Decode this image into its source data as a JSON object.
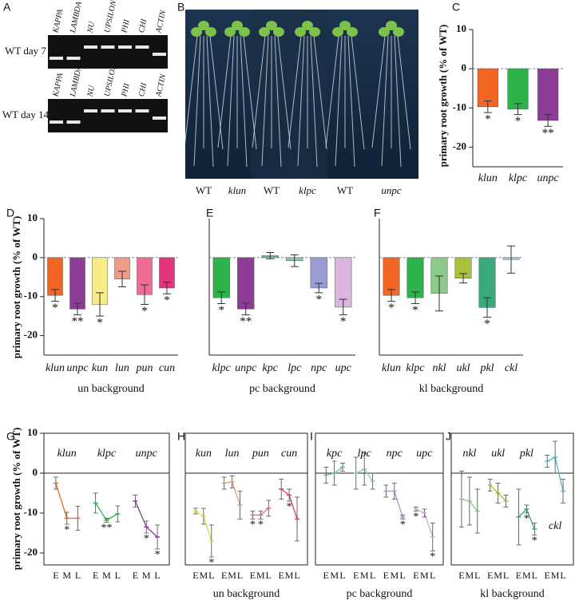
{
  "panel_A": {
    "label": "A",
    "lanes": [
      "KAPPA",
      "LAMBDA",
      "NU",
      "UPSILON",
      "PHI",
      "CHI",
      "ACTIN"
    ],
    "rows": [
      "WT day 7",
      "WT day 14"
    ]
  },
  "panel_B": {
    "label": "B",
    "captions": [
      "WT",
      "klun",
      "WT",
      "klpc",
      "WT",
      "unpc"
    ]
  },
  "chart_data": [
    {
      "type": "bar",
      "panel": "C",
      "ylabel": "primary root growth (% of WT)",
      "categories": [
        "klun",
        "klpc",
        "unpc"
      ],
      "values": [
        -9.7,
        -10.3,
        -13.2
      ],
      "errors": [
        1.5,
        1.4,
        1.5
      ],
      "colors": [
        "#f26522",
        "#2eb34a",
        "#8e3d97"
      ],
      "significance": [
        "*",
        "*",
        "**"
      ],
      "ylim": [
        -25,
        10
      ],
      "yticks": [
        10,
        0,
        -10,
        -20
      ]
    },
    {
      "type": "bar",
      "panel": "D",
      "ylabel": "primary root growth (% of WT)",
      "xlabel": "un background",
      "categories": [
        "klun",
        "unpc",
        "kun",
        "lun",
        "pun",
        "cun"
      ],
      "values": [
        -9.7,
        -13.2,
        -12,
        -5.5,
        -9.5,
        -7.8
      ],
      "errors": [
        1.5,
        1.5,
        3,
        2,
        2.5,
        1.5
      ],
      "colors": [
        "#f26522",
        "#8e3d97",
        "#f8ec84",
        "#ee9c88",
        "#ee6c93",
        "#e2367c"
      ],
      "significance": [
        "*",
        "**",
        "*",
        null,
        "*",
        "*"
      ],
      "ylim": [
        -25,
        10
      ],
      "yticks": [
        10,
        0,
        -10,
        -20
      ]
    },
    {
      "type": "bar",
      "panel": "E",
      "xlabel": "pc background",
      "categories": [
        "klpc",
        "unpc",
        "kpc",
        "lpc",
        "npc",
        "upc"
      ],
      "values": [
        -10.3,
        -13.2,
        0.5,
        -0.8,
        -7.8,
        -12.7
      ],
      "errors": [
        1.5,
        1.5,
        0.8,
        1.5,
        1.2,
        2
      ],
      "colors": [
        "#2eb34a",
        "#8e3d97",
        "#5bbcb0",
        "#8fc9a8",
        "#9b9bd4",
        "#dab6de"
      ],
      "significance": [
        "*",
        "**",
        null,
        null,
        "*",
        "*"
      ],
      "ylim": [
        -25,
        10
      ]
    },
    {
      "type": "bar",
      "panel": "F",
      "xlabel": "kl background",
      "categories": [
        "klun",
        "klpc",
        "nkl",
        "ukl",
        "pkl",
        "ckl"
      ],
      "values": [
        -9.7,
        -10.3,
        -9.2,
        -5.3,
        -12.8,
        -0.5
      ],
      "errors": [
        1.5,
        1.5,
        4.5,
        1.2,
        2.5,
        3.5
      ],
      "colors": [
        "#f26522",
        "#2eb34a",
        "#8dc98a",
        "#a8c23e",
        "#3aaa7a",
        "#9fd0dc"
      ],
      "significance": [
        "*",
        "*",
        null,
        null,
        "*",
        null
      ],
      "ylim": [
        -25,
        10
      ]
    },
    {
      "type": "line",
      "panel": "G",
      "ylabel": "primary root growth (% of WT)",
      "categories": [
        "E",
        "M",
        "L"
      ],
      "series": [
        {
          "name": "klun",
          "color": "#f26522",
          "values": [
            -2.5,
            -11.3,
            -11.3
          ],
          "errors": [
            1.5,
            1.5,
            3
          ],
          "significance": [
            null,
            "*",
            null
          ]
        },
        {
          "name": "klpc",
          "color": "#2eb34a",
          "values": [
            -7.5,
            -11.8,
            -10.2
          ],
          "errors": [
            2.5,
            0.5,
            2
          ],
          "significance": [
            null,
            "**",
            null
          ]
        },
        {
          "name": "unpc",
          "color": "#8e3d97",
          "values": [
            -7,
            -13.5,
            -16
          ],
          "errors": [
            1.5,
            1.5,
            3
          ],
          "significance": [
            null,
            "*",
            "*"
          ]
        }
      ],
      "ylim": [
        -23,
        10
      ],
      "yticks": [
        10,
        0,
        -10,
        -20
      ]
    },
    {
      "type": "line",
      "panel": "H",
      "xlabel": "un background",
      "categories": [
        "E",
        "M",
        "L"
      ],
      "series": [
        {
          "name": "kun",
          "color": "#e6d64a",
          "values": [
            -9.5,
            -10.8,
            -17
          ],
          "errors": [
            0.7,
            2,
            4
          ],
          "significance": [
            null,
            null,
            "*"
          ]
        },
        {
          "name": "lun",
          "color": "#e89a80",
          "values": [
            -2.5,
            -2.2,
            -8
          ],
          "errors": [
            1.5,
            1.5,
            3.5
          ],
          "significance": [
            null,
            null,
            null
          ]
        },
        {
          "name": "pun",
          "color": "#e86a9a",
          "values": [
            -10.5,
            -10.5,
            -8.8
          ],
          "errors": [
            1,
            1,
            2
          ],
          "significance": [
            "*",
            "*",
            null
          ]
        },
        {
          "name": "cun",
          "color": "#e03a7a",
          "values": [
            -4,
            -5.5,
            -11.5
          ],
          "errors": [
            2.5,
            1.5,
            5.5
          ],
          "significance": [
            null,
            "*",
            null
          ]
        }
      ],
      "ylim": [
        -23,
        10
      ]
    },
    {
      "type": "line",
      "panel": "I",
      "xlabel": "pc background",
      "categories": [
        "E",
        "M",
        "L"
      ],
      "series": [
        {
          "name": "kpc",
          "color": "#5bbcb0",
          "values": [
            -0.5,
            0,
            1.5
          ],
          "errors": [
            2,
            3,
            1
          ],
          "significance": [
            null,
            null,
            null
          ]
        },
        {
          "name": "lpc",
          "color": "#8fc9a8",
          "values": [
            0,
            1,
            -2
          ],
          "errors": [
            4,
            4,
            2
          ],
          "significance": [
            null,
            null,
            null
          ]
        },
        {
          "name": "npc",
          "color": "#9b9bd4",
          "values": [
            -4.5,
            -4.5,
            -11
          ],
          "errors": [
            1.5,
            2,
            0.5
          ],
          "significance": [
            null,
            null,
            "*"
          ]
        },
        {
          "name": "upc",
          "color": "#d8a8d8",
          "values": [
            -9,
            -10,
            -16
          ],
          "errors": [
            0.5,
            1,
            3.5
          ],
          "significance": [
            "*",
            null,
            "*"
          ]
        }
      ],
      "ylim": [
        -23,
        10
      ]
    },
    {
      "type": "line",
      "panel": "J",
      "xlabel": "kl background",
      "categories": [
        "E",
        "M",
        "L"
      ],
      "series": [
        {
          "name": "nkl",
          "color": "#8dc98a",
          "values": [
            -6.5,
            -7,
            -9.5
          ],
          "errors": [
            7,
            6,
            5.5
          ],
          "significance": [
            null,
            null,
            null
          ]
        },
        {
          "name": "ukl",
          "color": "#a8c23e",
          "values": [
            -3,
            -5,
            -7
          ],
          "errors": [
            1.5,
            2.5,
            1.5
          ],
          "significance": [
            null,
            null,
            null
          ]
        },
        {
          "name": "pkl",
          "color": "#3aaa7a",
          "values": [
            -11,
            -9,
            -14
          ],
          "errors": [
            7,
            1,
            1.5
          ],
          "significance": [
            null,
            "*",
            "*"
          ]
        },
        {
          "name": "ckl",
          "color": "#5ab8c8",
          "values": [
            3,
            4,
            -4.5
          ],
          "errors": [
            1.5,
            4,
            3
          ],
          "significance": [
            null,
            null,
            null
          ]
        }
      ],
      "ylim": [
        -23,
        10
      ]
    }
  ]
}
